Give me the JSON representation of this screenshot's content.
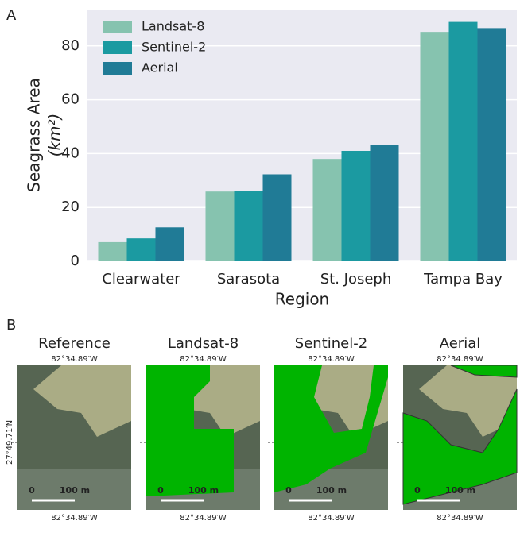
{
  "chart_data": {
    "type": "bar",
    "panel_label": "A",
    "ylabel": "Seagrass Area",
    "ylabel_unit": "(km²)",
    "xlabel": "Region",
    "categories": [
      "Clearwater",
      "Sarasota",
      "St. Joseph",
      "Tampa Bay"
    ],
    "series": [
      {
        "name": "Landsat-8",
        "color": "#86c3af",
        "values": [
          7.1,
          25.9,
          38,
          85.2
        ]
      },
      {
        "name": "Sentinel-2",
        "color": "#1b9aa1",
        "values": [
          8.5,
          26.1,
          41,
          88.9
        ]
      },
      {
        "name": "Aerial",
        "color": "#207b96",
        "values": [
          12.6,
          32.3,
          43.3,
          86.6
        ]
      }
    ],
    "ylim": [
      0,
      93.5
    ],
    "yticks": [
      0,
      20,
      40,
      60,
      80
    ],
    "grid": true,
    "legend": "upper-left"
  },
  "panel_b": {
    "label": "B",
    "lat": "27°49.71′N",
    "panels": [
      {
        "title": "Reference",
        "top_lon": "82°34.89′W",
        "bottom_lon": "82°34.89′W",
        "scale_start": "0",
        "scale_end": "100 m"
      },
      {
        "title": "Landsat-8",
        "top_lon": "82°34.89′W",
        "bottom_lon": "82°34.89′W",
        "scale_start": "0",
        "scale_end": "100 m"
      },
      {
        "title": "Sentinel-2",
        "top_lon": "82°34.89′W",
        "bottom_lon": "82°34.89′W",
        "scale_start": "0",
        "scale_end": "100 m"
      },
      {
        "title": "Aerial",
        "top_lon": "82°34.89′W",
        "bottom_lon": "82°34.89′W",
        "scale_start": "0",
        "scale_end": "100 m"
      }
    ]
  }
}
